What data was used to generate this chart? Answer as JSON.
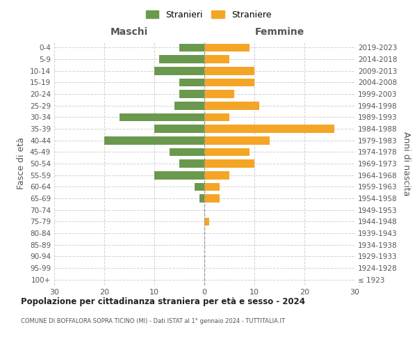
{
  "age_groups": [
    "100+",
    "95-99",
    "90-94",
    "85-89",
    "80-84",
    "75-79",
    "70-74",
    "65-69",
    "60-64",
    "55-59",
    "50-54",
    "45-49",
    "40-44",
    "35-39",
    "30-34",
    "25-29",
    "20-24",
    "15-19",
    "10-14",
    "5-9",
    "0-4"
  ],
  "birth_years": [
    "≤ 1923",
    "1924-1928",
    "1929-1933",
    "1934-1938",
    "1939-1943",
    "1944-1948",
    "1949-1953",
    "1954-1958",
    "1959-1963",
    "1964-1968",
    "1969-1973",
    "1974-1978",
    "1979-1983",
    "1984-1988",
    "1989-1993",
    "1994-1998",
    "1999-2003",
    "2004-2008",
    "2009-2013",
    "2014-2018",
    "2019-2023"
  ],
  "males": [
    0,
    0,
    0,
    0,
    0,
    0,
    0,
    1,
    2,
    10,
    5,
    7,
    20,
    10,
    17,
    6,
    5,
    5,
    10,
    9,
    5
  ],
  "females": [
    0,
    0,
    0,
    0,
    0,
    1,
    0,
    3,
    3,
    5,
    10,
    9,
    13,
    26,
    5,
    11,
    6,
    10,
    10,
    5,
    9
  ],
  "male_color": "#6a994e",
  "female_color": "#f4a526",
  "male_label": "Stranieri",
  "female_label": "Straniere",
  "title": "Popolazione per cittadinanza straniera per età e sesso - 2024",
  "subtitle": "COMUNE DI BOFFALORA SOPRA TICINO (MI) - Dati ISTAT al 1° gennaio 2024 - TUTTITALIA.IT",
  "xlabel_left": "Maschi",
  "xlabel_right": "Femmine",
  "ylabel_left": "Fasce di età",
  "ylabel_right": "Anni di nascita",
  "xlim": 30,
  "background_color": "#ffffff",
  "grid_color": "#cccccc"
}
